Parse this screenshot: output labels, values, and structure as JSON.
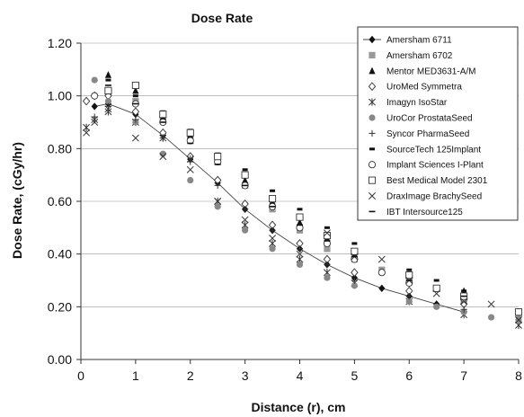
{
  "chart_data": {
    "type": "scatter",
    "title": "Dose Rate",
    "xlabel": "Distance (r), cm",
    "ylabel": "Dose Rate, (cGy/hr)",
    "xlim": [
      0,
      8
    ],
    "ylim": [
      0,
      1.2
    ],
    "x_ticks": [
      "0",
      "1",
      "2",
      "3",
      "4",
      "5",
      "6",
      "7",
      "8"
    ],
    "y_ticks": [
      "0.00",
      "0.20",
      "0.40",
      "0.60",
      "0.80",
      "1.00",
      "1.20"
    ],
    "grid": "horizontal",
    "legend_position": "top-right",
    "series": [
      {
        "name": "Amersham 6711",
        "marker": "diamond-filled",
        "line": true,
        "x": [
          0.25,
          0.5,
          1,
          1.5,
          2,
          2.5,
          3,
          3.5,
          4,
          4.5,
          5,
          5.5,
          6,
          6.5,
          7
        ],
        "y": [
          0.96,
          0.97,
          0.93,
          0.85,
          0.76,
          0.67,
          0.57,
          0.49,
          0.42,
          0.36,
          0.31,
          0.27,
          0.24,
          0.21,
          0.18
        ]
      },
      {
        "name": "Amersham 6702",
        "marker": "square-filled-gray",
        "x": [
          0.5,
          1,
          1.5,
          2,
          2.5,
          3,
          3.5,
          4,
          4.5,
          5,
          5.5,
          6,
          6.5,
          7,
          8
        ],
        "y": [
          1.01,
          0.98,
          0.91,
          0.84,
          0.75,
          0.66,
          0.57,
          0.49,
          0.42,
          0.38,
          0.34,
          0.3,
          0.27,
          0.22,
          0.17
        ]
      },
      {
        "name": "Mentor MED3631-A/M",
        "marker": "triangle-filled",
        "x": [
          0.5,
          1,
          1.5,
          2,
          2.5,
          3,
          3.5,
          4,
          4.5,
          5,
          6,
          7
        ],
        "y": [
          1.08,
          1.02,
          0.92,
          0.85,
          0.77,
          0.68,
          0.6,
          0.52,
          0.46,
          0.4,
          0.32,
          0.26
        ]
      },
      {
        "name": "UroMed Symmetra",
        "marker": "diamond-open",
        "x": [
          0.1,
          0.25,
          0.5,
          1,
          1.5,
          2,
          2.5,
          3,
          3.5,
          4,
          4.5,
          5,
          6,
          7
        ],
        "y": [
          0.98,
          1.0,
          1.0,
          0.94,
          0.86,
          0.77,
          0.68,
          0.59,
          0.51,
          0.44,
          0.38,
          0.33,
          0.26,
          0.21
        ]
      },
      {
        "name": "Imagyn IsoStar",
        "marker": "asterisk",
        "x": [
          0.1,
          0.25,
          0.5,
          1,
          1.5,
          2,
          2.5,
          3,
          3.5,
          4,
          4.5,
          5,
          6,
          7,
          8
        ],
        "y": [
          0.88,
          0.91,
          0.94,
          0.9,
          0.84,
          0.76,
          0.6,
          0.51,
          0.44,
          0.38,
          0.33,
          0.29,
          0.22,
          0.17,
          0.13
        ]
      },
      {
        "name": "UroCor ProstataSeed",
        "marker": "circle-filled-gray",
        "x": [
          0.25,
          0.5,
          1,
          1.5,
          2,
          2.5,
          3,
          3.5,
          4,
          4.5,
          5,
          6,
          6.5,
          7,
          7.5,
          8
        ],
        "y": [
          1.06,
          0.98,
          0.9,
          0.78,
          0.68,
          0.58,
          0.49,
          0.42,
          0.36,
          0.31,
          0.28,
          0.22,
          0.2,
          0.18,
          0.16,
          0.15
        ]
      },
      {
        "name": "Syncor PharmaSeed",
        "marker": "plus",
        "x": [
          0.25,
          0.5,
          1,
          1.5,
          2,
          2.5,
          3,
          3.5,
          4,
          4.5,
          5,
          6,
          7
        ],
        "y": [
          0.92,
          0.96,
          0.91,
          0.84,
          0.75,
          0.66,
          0.57,
          0.49,
          0.42,
          0.36,
          0.3,
          0.24,
          0.19
        ]
      },
      {
        "name": "SourceTech 125Implant",
        "marker": "dash-thick",
        "x": [
          0.5,
          1,
          1.5,
          2,
          2.5,
          3,
          3.5,
          4,
          4.5,
          5,
          6,
          6.5,
          7
        ],
        "y": [
          1.06,
          1.0,
          0.94,
          0.87,
          0.78,
          0.72,
          0.64,
          0.57,
          0.5,
          0.44,
          0.34,
          0.3,
          0.26
        ]
      },
      {
        "name": "Implant Sciences I-Plant",
        "marker": "circle-open",
        "x": [
          0.25,
          0.5,
          1,
          1.5,
          2,
          2.5,
          3,
          3.5,
          4,
          4.5,
          5,
          5.5,
          6,
          7,
          8
        ],
        "y": [
          1.0,
          1.02,
          0.97,
          0.9,
          0.83,
          0.75,
          0.66,
          0.58,
          0.5,
          0.44,
          0.38,
          0.33,
          0.29,
          0.23,
          0.18
        ]
      },
      {
        "name": "Best Medical Model 2301",
        "marker": "square-open",
        "x": [
          0.5,
          1,
          1.5,
          2,
          2.5,
          3,
          3.5,
          4,
          4.5,
          5,
          6,
          6.5,
          7,
          8
        ],
        "y": [
          1.02,
          1.04,
          0.93,
          0.86,
          0.77,
          0.7,
          0.61,
          0.54,
          0.47,
          0.41,
          0.32,
          0.27,
          0.24,
          0.18
        ]
      },
      {
        "name": "DraxImage BrachySeed",
        "marker": "x",
        "x": [
          0.1,
          0.25,
          0.5,
          1,
          1.5,
          2,
          2.5,
          3,
          3.5,
          4,
          4.5,
          5,
          5.5,
          6,
          6.5,
          7,
          7.5,
          8
        ],
        "y": [
          0.86,
          0.9,
          0.95,
          0.84,
          0.77,
          0.72,
          0.6,
          0.53,
          0.46,
          0.4,
          0.48,
          0.39,
          0.38,
          0.3,
          0.25,
          0.22,
          0.21,
          0.15
        ]
      },
      {
        "name": "IBT Intersource125",
        "marker": "dash",
        "x": [
          0.5,
          1,
          1.5,
          2,
          2.5,
          3,
          3.5,
          4,
          4.5,
          5,
          6,
          7
        ],
        "y": [
          1.04,
          0.97,
          0.9,
          0.82,
          0.74,
          0.66,
          0.58,
          0.51,
          0.45,
          0.39,
          0.3,
          0.24
        ]
      }
    ]
  }
}
